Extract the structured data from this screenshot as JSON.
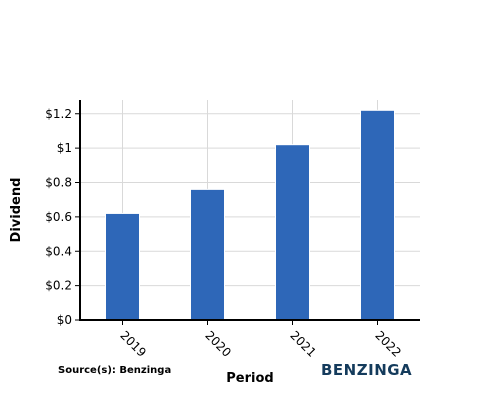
{
  "chart_data": {
    "type": "bar",
    "categories": [
      "2019",
      "2020",
      "2021",
      "2022"
    ],
    "values": [
      0.62,
      0.76,
      1.02,
      1.22
    ],
    "xlabel": "Period",
    "ylabel": "Dividend",
    "ylim": [
      0,
      1.28
    ],
    "yticks": [
      0,
      0.2,
      0.4,
      0.6,
      0.8,
      1,
      1.2
    ],
    "ytick_labels": [
      "$0",
      "$0.2",
      "$0.4",
      "$0.6",
      "$0.8",
      "$1",
      "$1.2"
    ],
    "grid": true,
    "bar_color": "#2e67b8"
  },
  "footer": {
    "source": "Source(s): Benzinga",
    "brand": "BENZINGA",
    "brand_color": "#143b5c"
  }
}
